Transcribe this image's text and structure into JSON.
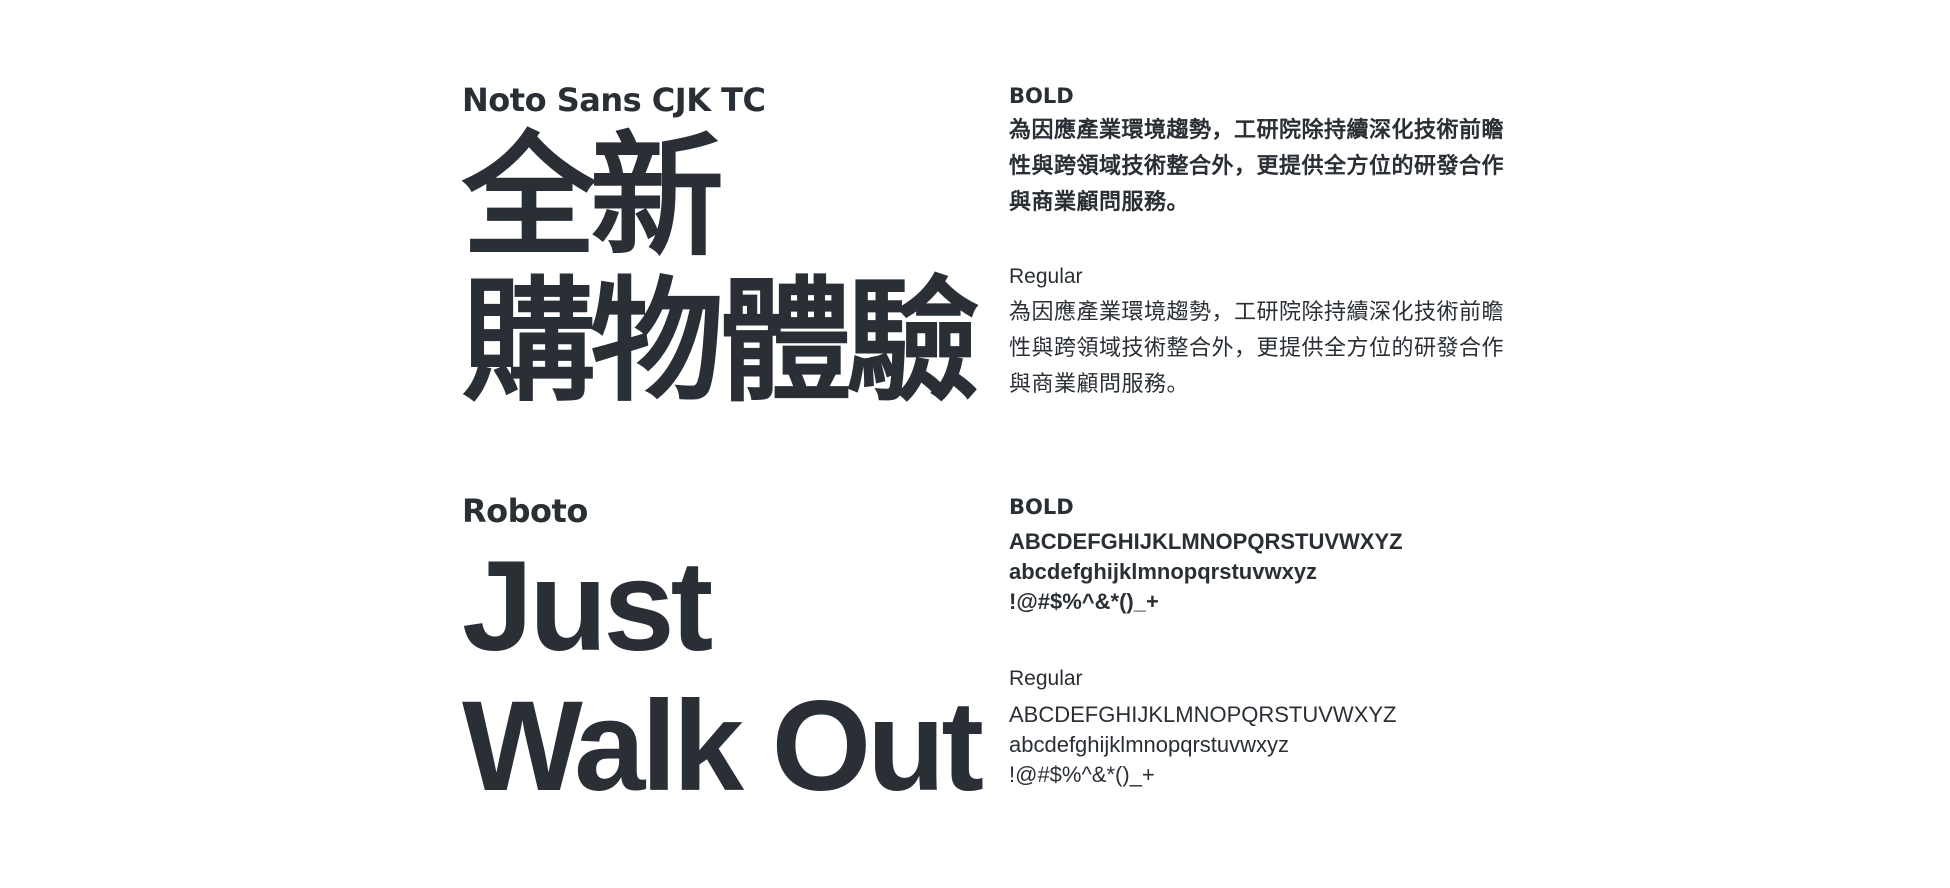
{
  "noto": {
    "font_name": "Noto Sans CJK TC",
    "display_lines": [
      "全新",
      "購物體驗"
    ],
    "bold_label": "BOLD",
    "bold_sample": "為因應產業環境趨勢，工研院除持續深化技術前瞻性與跨領域技術整合外，更提供全方位的研發合作與商業顧問服務。",
    "regular_label": "Regular",
    "regular_sample": "為因應產業環境趨勢，工研院除持續深化技術前瞻性與跨領域技術整合外，更提供全方位的研發合作與商業顧問服務。"
  },
  "roboto": {
    "font_name": "Roboto",
    "display_lines": [
      "Just",
      "Walk Out"
    ],
    "bold_label": "BOLD",
    "bold_lines": [
      "ABCDEFGHIJKLMNOPQRSTUVWXYZ",
      "abcdefghijklmnopqrstuvwxyz",
      "!@#$%^&*()_+"
    ],
    "regular_label": "Regular",
    "regular_lines": [
      "ABCDEFGHIJKLMNOPQRSTUVWXYZ",
      "abcdefghijklmnopqrstuvwxyz",
      "!@#$%^&*()_+"
    ]
  },
  "colors": {
    "text": "#2a2f36",
    "background": "#ffffff"
  }
}
